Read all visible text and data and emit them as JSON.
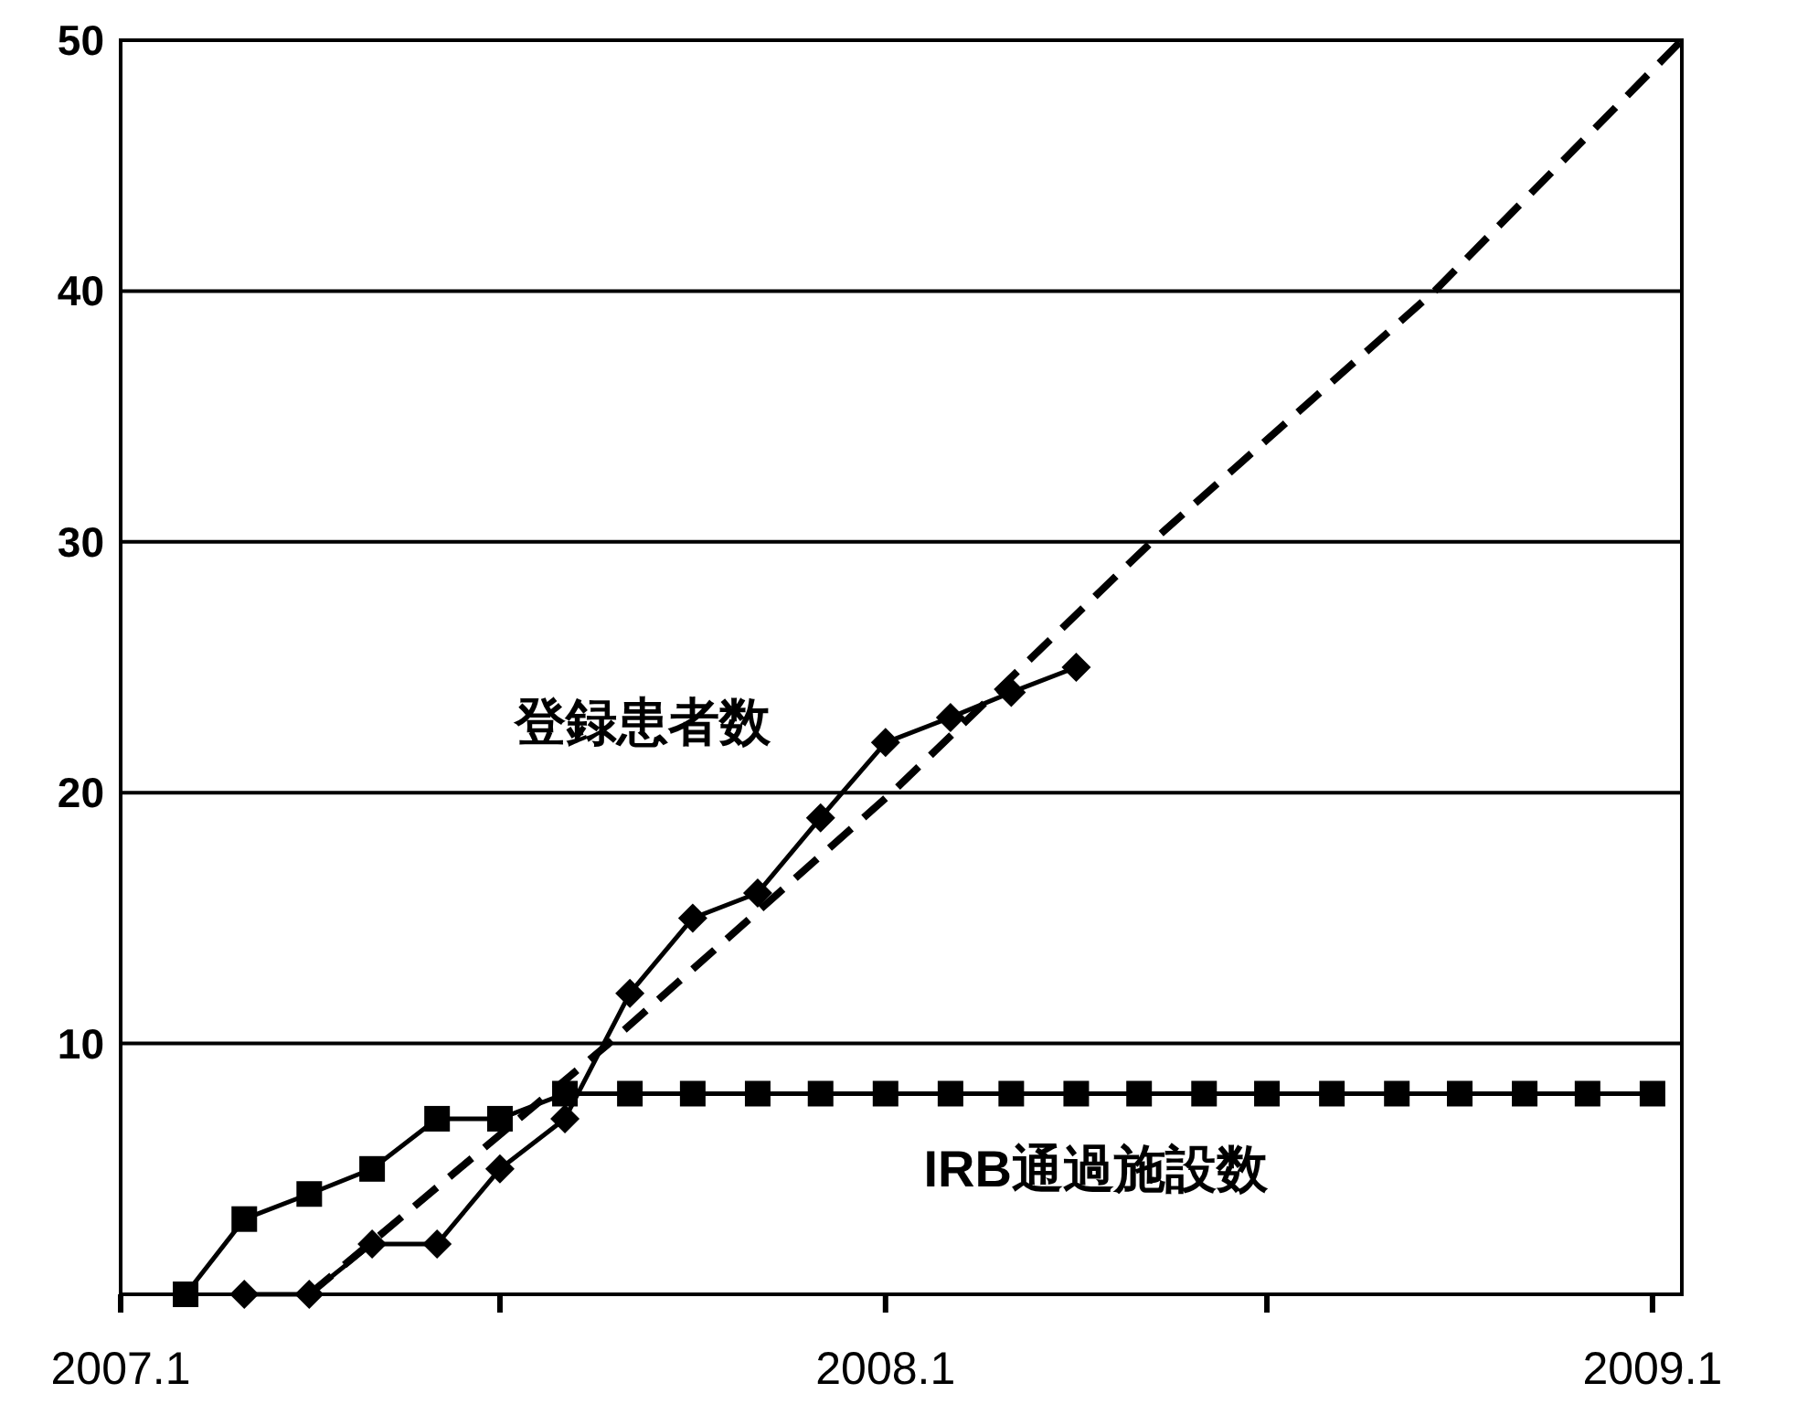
{
  "chart_data": {
    "type": "line",
    "x": [
      "2007-02",
      "2007-03",
      "2007-04",
      "2007-05",
      "2007-06",
      "2007-07",
      "2007-08",
      "2007-09",
      "2007-10",
      "2007-11",
      "2007-12",
      "2008-01",
      "2008-02",
      "2008-03",
      "2008-04",
      "2008-05",
      "2008-06",
      "2008-07",
      "2008-08",
      "2008-09",
      "2008-10",
      "2008-11",
      "2008-12",
      "2009-01"
    ],
    "xlim": [
      "2007-01-01",
      "2009-01-15"
    ],
    "xticks": [
      {
        "value": "2007-01",
        "label": "2007.1"
      },
      {
        "value": "2007-07",
        "label": null
      },
      {
        "value": "2008-01",
        "label": "2008.1"
      },
      {
        "value": "2008-07",
        "label": null
      },
      {
        "value": "2009-01",
        "label": "2009.1"
      }
    ],
    "ylim": [
      0,
      50
    ],
    "yticks": [
      10,
      20,
      30,
      40,
      50
    ],
    "grid": "y",
    "legend": false,
    "series": [
      {
        "name": "登録患者数",
        "color": "#000000",
        "marker": "diamond",
        "values": [
          null,
          0,
          0,
          2,
          2,
          5,
          7,
          12,
          15,
          16,
          19,
          22,
          23,
          24,
          25,
          null,
          null,
          null,
          null,
          null,
          null,
          null,
          null,
          null
        ]
      },
      {
        "name": "IRB通過施設数",
        "color": "#000000",
        "marker": "square",
        "values": [
          0,
          3,
          4,
          5,
          7,
          7,
          8,
          8,
          8,
          8,
          8,
          8,
          8,
          8,
          8,
          8,
          8,
          8,
          8,
          8,
          8,
          8,
          8,
          8
        ]
      },
      {
        "color": "#000000",
        "marker": "none",
        "line_style": "dashed",
        "x": [
          "2007-04-01",
          "2007-08-22",
          "2008-01-04",
          "2008-05-07",
          "2008-09-19",
          "2009-01-15"
        ],
        "values": [
          0,
          10,
          20,
          30,
          40,
          50
        ]
      }
    ]
  }
}
